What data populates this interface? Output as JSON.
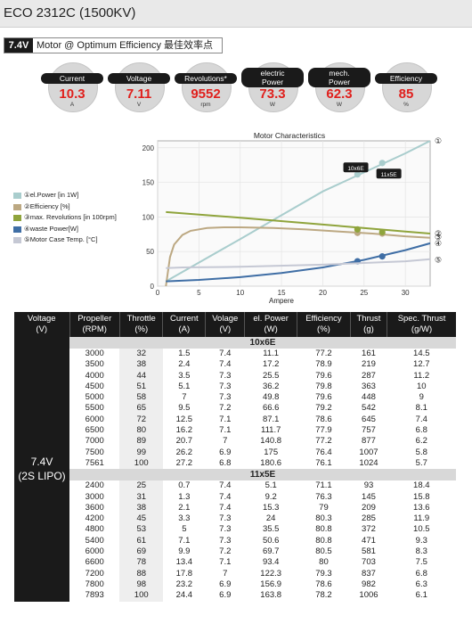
{
  "header": {
    "title": "ECO 2312C (1500KV)"
  },
  "voltbar": {
    "tag": "7.4V",
    "text": "Motor @ Optimum Efficiency  最佳效率点"
  },
  "gauges": [
    {
      "label": "Current",
      "value": "10.3",
      "unit": "A"
    },
    {
      "label": "Voltage",
      "value": "7.11",
      "unit": "V"
    },
    {
      "label": "Revolutions*",
      "value": "9552",
      "unit": "rpm"
    },
    {
      "label": "electric Power",
      "value": "73.3",
      "unit": "W"
    },
    {
      "label": "mech. Power",
      "value": "62.3",
      "unit": "W"
    },
    {
      "label": "Efficiency",
      "value": "85",
      "unit": "%"
    }
  ],
  "legend": [
    {
      "text": "①el.Power [in 1W]",
      "color": "#a9cdcd"
    },
    {
      "text": "②Efficiency [%]",
      "color": "#bca882"
    },
    {
      "text": "③max. Revolutions [in 100rpm]",
      "color": "#8fa43c"
    },
    {
      "text": "④waste Power[W]",
      "color": "#3f6ea5"
    },
    {
      "text": "⑤Motor Case Temp. [°C]",
      "color": "#c5c8d4"
    }
  ],
  "chart_data": {
    "type": "line",
    "title": "Motor Characteristics",
    "xlabel": "Ampere",
    "ylabel": "",
    "xlim": [
      0,
      33
    ],
    "ylim": [
      0,
      210
    ],
    "xticks": [
      0,
      5,
      10,
      15,
      20,
      25,
      30
    ],
    "yticks": [
      0,
      50,
      100,
      150,
      200
    ],
    "grid": true,
    "end_markers": [
      "①",
      "②",
      "③",
      "④",
      "⑤"
    ],
    "annotations": [
      {
        "text": "10x6E",
        "x": 24,
        "y": 171
      },
      {
        "text": "11x5E",
        "x": 28,
        "y": 162
      }
    ],
    "series": [
      {
        "name": "el.Power",
        "color": "#a9cdcd",
        "x": [
          1,
          10,
          20,
          30,
          33
        ],
        "y": [
          7,
          68,
          137,
          192,
          210
        ],
        "markers": [
          [
            24.2,
            161.5
          ],
          [
            27.2,
            178
          ]
        ]
      },
      {
        "name": "Efficiency",
        "color": "#bca882",
        "x": [
          1,
          1.5,
          2,
          3,
          4,
          6,
          8,
          10,
          14,
          18,
          22,
          26,
          30,
          33
        ],
        "y": [
          0,
          42,
          60,
          74,
          80,
          84,
          85,
          85,
          84,
          82,
          79,
          76,
          72,
          70
        ],
        "markers": [
          [
            24.2,
            77
          ],
          [
            27.2,
            76
          ]
        ]
      },
      {
        "name": "max. Revolutions",
        "color": "#8fa43c",
        "x": [
          1,
          10,
          20,
          30,
          33
        ],
        "y": [
          107,
          99,
          89,
          79,
          76
        ],
        "markers": [
          [
            24.2,
            82
          ],
          [
            27.2,
            78
          ]
        ]
      },
      {
        "name": "waste Power",
        "color": "#3f6ea5",
        "x": [
          1,
          5,
          10,
          15,
          20,
          25,
          30,
          33
        ],
        "y": [
          7,
          9,
          13,
          19,
          27,
          38,
          52,
          62
        ],
        "markers": [
          [
            24.2,
            36
          ],
          [
            27.2,
            43
          ]
        ]
      },
      {
        "name": "Motor Case Temp.",
        "color": "#c5c8d4",
        "x": [
          1,
          3,
          10,
          20,
          30,
          33
        ],
        "y": [
          26,
          27,
          28,
          31,
          36,
          39
        ],
        "markers": []
      }
    ]
  },
  "table": {
    "columns": [
      {
        "l1": "Voltage",
        "l2": "(V)"
      },
      {
        "l1": "Propeller",
        "l2": "(RPM)"
      },
      {
        "l1": "Throttle",
        "l2": "(%)"
      },
      {
        "l1": "Current",
        "l2": "(A)"
      },
      {
        "l1": "Volage",
        "l2": "(V)"
      },
      {
        "l1": "el. Power",
        "l2": "(W)"
      },
      {
        "l1": "Efficiency",
        "l2": "(%)"
      },
      {
        "l1": "Thrust",
        "l2": "(g)"
      },
      {
        "l1": "Spec. Thrust",
        "l2": "(g/W)"
      }
    ],
    "voltage": {
      "l1": "7.4V",
      "l2": "(2S LIPO)"
    },
    "sections": [
      {
        "name": "10x6E",
        "rows": [
          [
            "3000",
            "32",
            "1.5",
            "7.4",
            "11.1",
            "77.2",
            "161",
            "14.5"
          ],
          [
            "3500",
            "38",
            "2.4",
            "7.4",
            "17.2",
            "78.9",
            "219",
            "12.7"
          ],
          [
            "4000",
            "44",
            "3.5",
            "7.3",
            "25.5",
            "79.6",
            "287",
            "11.2"
          ],
          [
            "4500",
            "51",
            "5.1",
            "7.3",
            "36.2",
            "79.8",
            "363",
            "10"
          ],
          [
            "5000",
            "58",
            "7",
            "7.3",
            "49.8",
            "79.6",
            "448",
            "9"
          ],
          [
            "5500",
            "65",
            "9.5",
            "7.2",
            "66.6",
            "79.2",
            "542",
            "8.1"
          ],
          [
            "6000",
            "72",
            "12.5",
            "7.1",
            "87.1",
            "78.6",
            "645",
            "7.4"
          ],
          [
            "6500",
            "80",
            "16.2",
            "7.1",
            "111.7",
            "77.9",
            "757",
            "6.8"
          ],
          [
            "7000",
            "89",
            "20.7",
            "7",
            "140.8",
            "77.2",
            "877",
            "6.2"
          ],
          [
            "7500",
            "99",
            "26.2",
            "6.9",
            "175",
            "76.4",
            "1007",
            "5.8"
          ],
          [
            "7561",
            "100",
            "27.2",
            "6.8",
            "180.6",
            "76.1",
            "1024",
            "5.7"
          ]
        ]
      },
      {
        "name": "11x5E",
        "rows": [
          [
            "2400",
            "25",
            "0.7",
            "7.4",
            "5.1",
            "71.1",
            "93",
            "18.4"
          ],
          [
            "3000",
            "31",
            "1.3",
            "7.4",
            "9.2",
            "76.3",
            "145",
            "15.8"
          ],
          [
            "3600",
            "38",
            "2.1",
            "7.4",
            "15.3",
            "79",
            "209",
            "13.6"
          ],
          [
            "4200",
            "45",
            "3.3",
            "7.3",
            "24",
            "80.3",
            "285",
            "11.9"
          ],
          [
            "4800",
            "53",
            "5",
            "7.3",
            "35.5",
            "80.8",
            "372",
            "10.5"
          ],
          [
            "5400",
            "61",
            "7.1",
            "7.3",
            "50.6",
            "80.8",
            "471",
            "9.3"
          ],
          [
            "6000",
            "69",
            "9.9",
            "7.2",
            "69.7",
            "80.5",
            "581",
            "8.3"
          ],
          [
            "6600",
            "78",
            "13.4",
            "7.1",
            "93.4",
            "80",
            "703",
            "7.5"
          ],
          [
            "7200",
            "88",
            "17.8",
            "7",
            "122.3",
            "79.3",
            "837",
            "6.8"
          ],
          [
            "7800",
            "98",
            "23.2",
            "6.9",
            "156.9",
            "78.6",
            "982",
            "6.3"
          ],
          [
            "7893",
            "100",
            "24.4",
            "6.9",
            "163.8",
            "78.2",
            "1006",
            "6.1"
          ]
        ]
      }
    ]
  }
}
